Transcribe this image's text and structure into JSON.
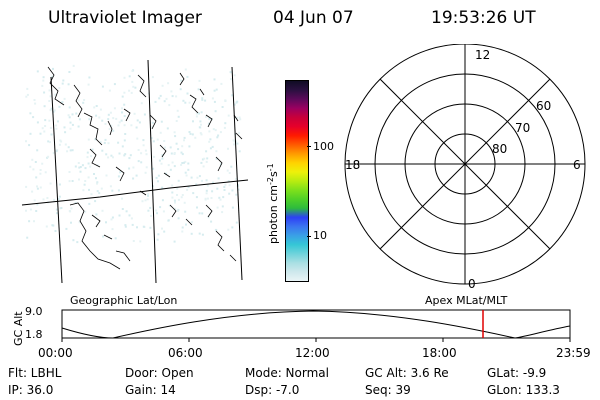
{
  "header": {
    "title": "Ultraviolet Imager",
    "date": "04 Jun 07",
    "time": "19:53:26 UT"
  },
  "colorbar": {
    "unit_label": "photon cm-2s-1",
    "tick_labels": [
      "100",
      "10"
    ],
    "colors": [
      "#e9f4f6",
      "#cfe8ec",
      "#a9dfe3",
      "#6fd3db",
      "#35c7d6",
      "#3aa0e6",
      "#3b74f0",
      "#2d40f5",
      "#2dbb3d",
      "#50d027",
      "#7fe01b",
      "#b9ec10",
      "#eef10a",
      "#ffd200",
      "#ff9b00",
      "#ff5a00",
      "#ff1a00",
      "#e6002a",
      "#c8003a",
      "#9a0060",
      "#5c0a5a",
      "#2a1040",
      "#100c24"
    ]
  },
  "polar": {
    "mlt_labels": {
      "top": "12",
      "left": "18",
      "right": "6",
      "bottom": "0"
    },
    "lat_labels": [
      "60",
      "70",
      "80"
    ]
  },
  "map_labels": {
    "left": "Geographic Lat/Lon",
    "right": "Apex  MLat/MLT"
  },
  "altitude_strip": {
    "axis_title": "GC Alt",
    "y_ticks": [
      "9.0",
      "1.8"
    ],
    "x_ticks": [
      "00:00",
      "06:00",
      "12:00",
      "18:00",
      "23:59"
    ],
    "marker_time_hours": 19.89
  },
  "status": {
    "filter": "Flt: LBHL",
    "ip": "IP: 36.0",
    "door": "Door: Open",
    "gain": "Gain: 14",
    "mode": "Mode: Normal",
    "dsp": "Dsp:    -7.0",
    "gc_alt": "GC Alt: 3.6 Re",
    "seq": "Seq: 39",
    "glat": "GLat:   -9.9",
    "glon": "GLon: 133.3"
  }
}
